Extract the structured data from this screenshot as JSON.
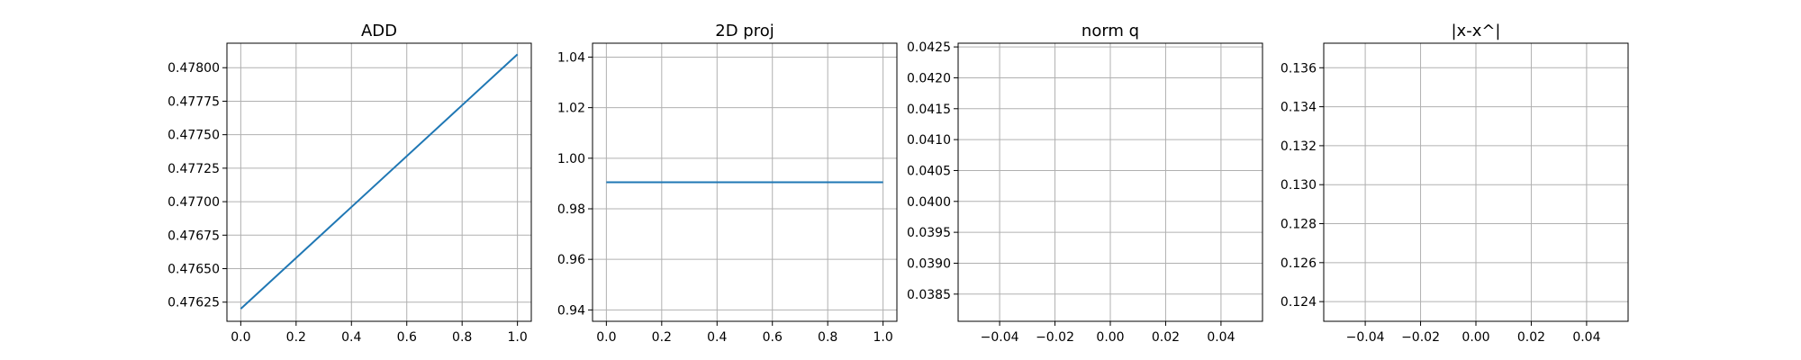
{
  "chart_data": [
    {
      "type": "line",
      "title": "ADD",
      "xlabel": "",
      "ylabel": "",
      "grid": true,
      "xlim": [
        -0.05,
        1.05
      ],
      "ylim": [
        0.476107,
        0.478183
      ],
      "xticks": [
        0.0,
        0.2,
        0.4,
        0.6,
        0.8,
        1.0
      ],
      "xtick_labels": [
        "0.0",
        "0.2",
        "0.4",
        "0.6",
        "0.8",
        "1.0"
      ],
      "yticks": [
        0.47625,
        0.4765,
        0.47675,
        0.477,
        0.47725,
        0.4775,
        0.47775,
        0.478
      ],
      "ytick_labels": [
        "0.47625",
        "0.47650",
        "0.47675",
        "0.47700",
        "0.47725",
        "0.47750",
        "0.47775",
        "0.47800"
      ],
      "series": [
        {
          "color": "#1f77b4",
          "x": [
            0,
            1
          ],
          "y": [
            0.4762,
            0.4781
          ]
        }
      ]
    },
    {
      "type": "line",
      "title": "2D proj",
      "xlabel": "",
      "ylabel": "",
      "grid": true,
      "xlim": [
        -0.05,
        1.05
      ],
      "ylim": [
        0.9355,
        1.0455
      ],
      "xticks": [
        0.0,
        0.2,
        0.4,
        0.6,
        0.8,
        1.0
      ],
      "xtick_labels": [
        "0.0",
        "0.2",
        "0.4",
        "0.6",
        "0.8",
        "1.0"
      ],
      "yticks": [
        0.94,
        0.96,
        0.98,
        1.0,
        1.02,
        1.04
      ],
      "ytick_labels": [
        "0.94",
        "0.96",
        "0.98",
        "1.00",
        "1.02",
        "1.04"
      ],
      "series": [
        {
          "color": "#1f77b4",
          "x": [
            0,
            1
          ],
          "y": [
            0.9905,
            0.9905
          ]
        }
      ]
    },
    {
      "type": "line",
      "title": "norm q",
      "xlabel": "",
      "ylabel": "",
      "grid": true,
      "xlim": [
        -0.055,
        0.055
      ],
      "ylim": [
        0.03806,
        0.04256
      ],
      "xticks": [
        -0.04,
        -0.02,
        0.0,
        0.02,
        0.04
      ],
      "xtick_labels": [
        "−0.04",
        "−0.02",
        "0.00",
        "0.02",
        "0.04"
      ],
      "yticks": [
        0.0385,
        0.039,
        0.0395,
        0.04,
        0.0405,
        0.041,
        0.0415,
        0.042,
        0.0425
      ],
      "ytick_labels": [
        "0.0385",
        "0.0390",
        "0.0395",
        "0.0400",
        "0.0405",
        "0.0410",
        "0.0415",
        "0.0420",
        "0.0425"
      ],
      "series": []
    },
    {
      "type": "line",
      "title": "|x-x^|",
      "xlabel": "",
      "ylabel": "",
      "grid": true,
      "xlim": [
        -0.055,
        0.055
      ],
      "ylim": [
        0.12299,
        0.13726
      ],
      "xticks": [
        -0.04,
        -0.02,
        0.0,
        0.02,
        0.04
      ],
      "xtick_labels": [
        "−0.04",
        "−0.02",
        "0.00",
        "0.02",
        "0.04"
      ],
      "yticks": [
        0.124,
        0.126,
        0.128,
        0.13,
        0.132,
        0.134,
        0.136
      ],
      "ytick_labels": [
        "0.124",
        "0.126",
        "0.128",
        "0.130",
        "0.132",
        "0.134",
        "0.136"
      ],
      "series": []
    }
  ]
}
